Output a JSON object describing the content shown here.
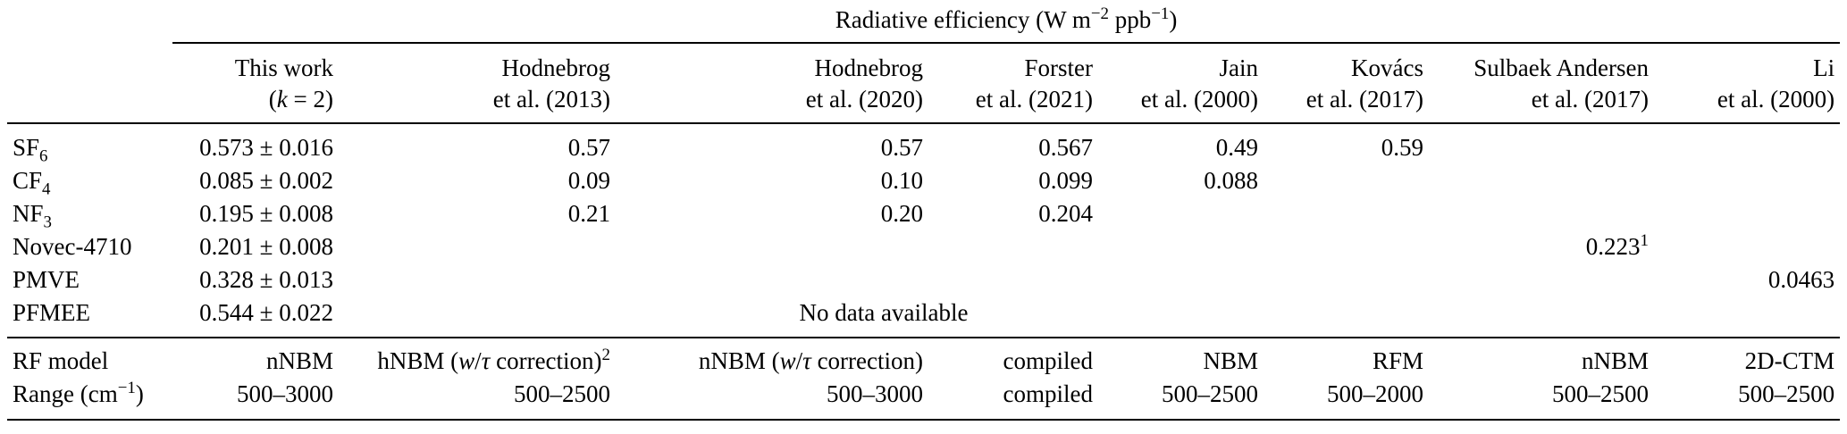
{
  "table": {
    "group_header": "Radiative efficiency (W m^{−2} ppb^{−1})",
    "columns": [
      {
        "line1": "",
        "line2": ""
      },
      {
        "line1": "This work",
        "line2": "(*k* = 2)"
      },
      {
        "line1": "Hodnebrog",
        "line2": "et al. (2013)"
      },
      {
        "line1": "Hodnebrog",
        "line2": "et al. (2020)"
      },
      {
        "line1": "Forster",
        "line2": "et al. (2021)"
      },
      {
        "line1": "Jain",
        "line2": "et al. (2000)"
      },
      {
        "line1": "Kovács",
        "line2": "et al. (2017)"
      },
      {
        "line1": "Sulbaek Andersen",
        "line2": "et al. (2017)"
      },
      {
        "line1": "Li",
        "line2": "et al. (2000)"
      }
    ],
    "rows": [
      {
        "label": "SF_6",
        "cells": [
          "0.573 ± 0.016",
          "0.57",
          "0.57",
          "0.567",
          "0.49",
          "0.59",
          "",
          ""
        ]
      },
      {
        "label": "CF_4",
        "cells": [
          "0.085 ± 0.002",
          "0.09",
          "0.10",
          "0.099",
          "0.088",
          "",
          "",
          ""
        ]
      },
      {
        "label": "NF_3",
        "cells": [
          "0.195 ± 0.008",
          "0.21",
          "0.20",
          "0.204",
          "",
          "",
          "",
          ""
        ]
      },
      {
        "label": "Novec-4710",
        "cells": [
          "0.201 ± 0.008",
          "",
          "",
          "",
          "",
          "",
          "0.223^1",
          ""
        ]
      },
      {
        "label": "PMVE",
        "cells": [
          "0.328 ± 0.013",
          "",
          "",
          "",
          "",
          "",
          "",
          "0.0463"
        ]
      },
      {
        "label": "PFMEE",
        "cells": [
          "0.544 ± 0.022"
        ],
        "note": "No data available",
        "note_span": 5,
        "cells_after": [
          "",
          ""
        ]
      }
    ],
    "footer_rows": [
      {
        "label": "RF model",
        "cells": [
          "nNBM",
          "hNBM (*w*/*τ* correction)^2",
          "nNBM (*w*/*τ* correction)",
          "compiled",
          "NBM",
          "RFM",
          "nNBM",
          "2D-CTM"
        ]
      },
      {
        "label": "Range (cm^{−1})",
        "cells": [
          "500–3000",
          "500–2500",
          "500–3000",
          "compiled",
          "500–2500",
          "500–2000",
          "500–2500",
          "500–2500"
        ]
      }
    ]
  }
}
